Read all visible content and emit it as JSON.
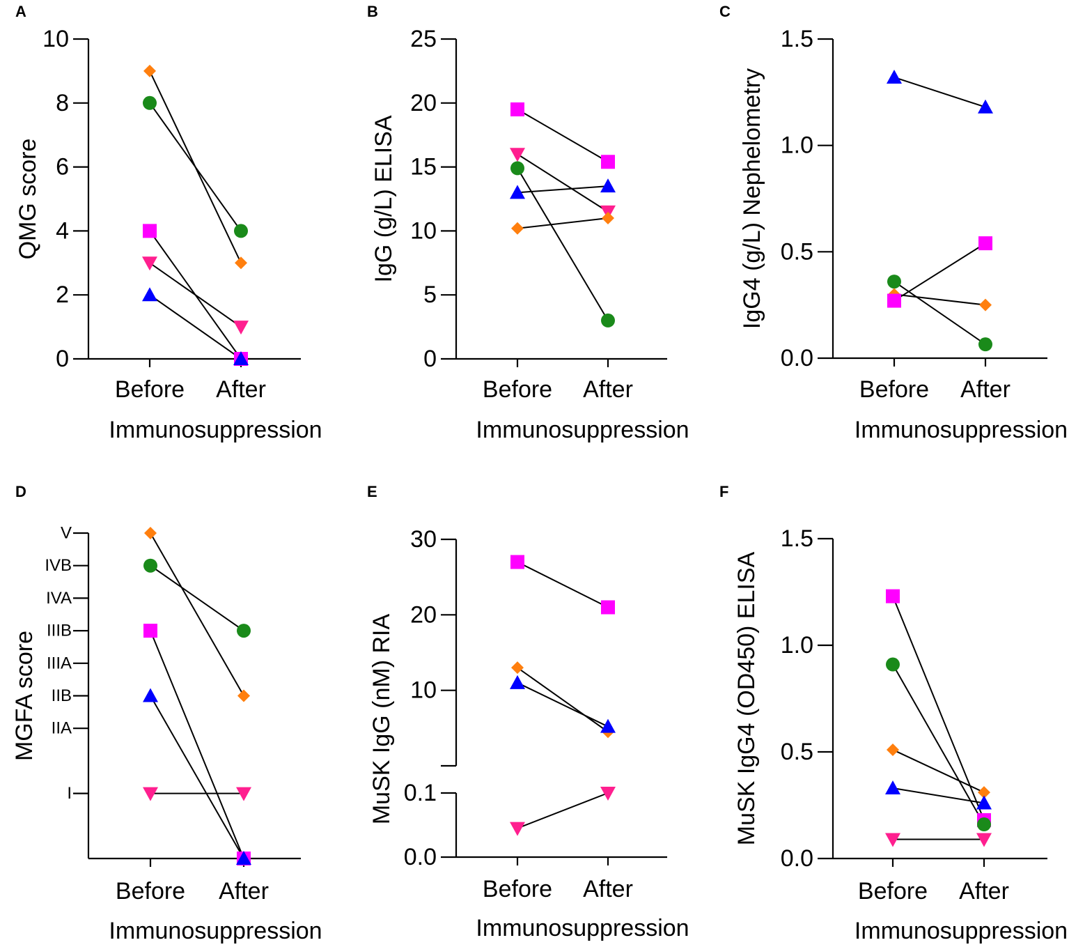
{
  "figure": "Six-panel before/after immunosuppression comparison",
  "colors": {
    "orange": "#ff7f0e",
    "green": "#1a8a1a",
    "magenta": "#ff00ff",
    "pink": "#ff1f8f",
    "blue": "#0000ff"
  },
  "chart_data": [
    {
      "panel": "A",
      "type": "line",
      "categories": [
        "Before",
        "After"
      ],
      "xlabel": "Immunosuppression",
      "ylabel": "QMG score",
      "ylim": [
        0,
        10
      ],
      "yticks": [
        0,
        2,
        4,
        6,
        8,
        10
      ],
      "series": [
        {
          "name": "orange-diamond",
          "color": "orange",
          "marker": "diamond",
          "values": [
            9,
            3
          ]
        },
        {
          "name": "green-circle",
          "color": "green",
          "marker": "circle",
          "values": [
            8,
            4
          ]
        },
        {
          "name": "magenta-square",
          "color": "magenta",
          "marker": "square",
          "values": [
            4,
            0
          ]
        },
        {
          "name": "pink-triangle-down",
          "color": "pink",
          "marker": "tri-down",
          "values": [
            3,
            1
          ]
        },
        {
          "name": "blue-triangle-up",
          "color": "blue",
          "marker": "tri-up",
          "values": [
            2,
            0
          ]
        }
      ]
    },
    {
      "panel": "B",
      "type": "line",
      "categories": [
        "Before",
        "After"
      ],
      "xlabel": "Immunosuppression",
      "ylabel": "IgG (g/L) ELISA",
      "ylim": [
        0,
        25
      ],
      "yticks": [
        0,
        5,
        10,
        15,
        20,
        25
      ],
      "series": [
        {
          "name": "magenta-square",
          "color": "magenta",
          "marker": "square",
          "values": [
            19.5,
            15.4
          ]
        },
        {
          "name": "pink-triangle-down",
          "color": "pink",
          "marker": "tri-down",
          "values": [
            16,
            11.5
          ]
        },
        {
          "name": "green-circle",
          "color": "green",
          "marker": "circle",
          "values": [
            14.9,
            3
          ]
        },
        {
          "name": "blue-triangle-up",
          "color": "blue",
          "marker": "tri-up",
          "values": [
            13,
            13.5
          ]
        },
        {
          "name": "orange-diamond",
          "color": "orange",
          "marker": "diamond",
          "values": [
            10.2,
            11
          ]
        }
      ]
    },
    {
      "panel": "C",
      "type": "line",
      "categories": [
        "Before",
        "After"
      ],
      "xlabel": "Immunosuppression",
      "ylabel": "IgG4 (g/L) Nephelometry",
      "ylim": [
        0,
        1.5
      ],
      "yticks": [
        0,
        0.5,
        1,
        1.5
      ],
      "ytick_labels": [
        "0.0",
        "0.5",
        "1.0",
        "1.5"
      ],
      "series": [
        {
          "name": "blue-triangle-up",
          "color": "blue",
          "marker": "tri-up",
          "values": [
            1.32,
            1.18
          ]
        },
        {
          "name": "green-circle",
          "color": "green",
          "marker": "circle",
          "values": [
            0.36,
            0.065
          ]
        },
        {
          "name": "orange-diamond",
          "color": "orange",
          "marker": "diamond",
          "values": [
            0.3,
            0.25
          ]
        },
        {
          "name": "magenta-square",
          "color": "magenta",
          "marker": "square",
          "values": [
            0.27,
            0.54
          ]
        }
      ]
    },
    {
      "panel": "D",
      "type": "line",
      "categories": [
        "Before",
        "After"
      ],
      "xlabel": "Immunosuppression",
      "ylabel": "MGFA score",
      "ylim": [
        0,
        10
      ],
      "yticks": [
        2,
        4,
        5,
        6,
        7,
        8,
        9,
        10
      ],
      "ytick_labels": [
        "I",
        "IIA",
        "IIB",
        "IIIA",
        "IIIB",
        "IVA",
        "IVB",
        "V"
      ],
      "series": [
        {
          "name": "orange-diamond",
          "color": "orange",
          "marker": "diamond",
          "values": [
            10,
            5
          ]
        },
        {
          "name": "green-circle",
          "color": "green",
          "marker": "circle",
          "values": [
            9,
            7
          ]
        },
        {
          "name": "magenta-square",
          "color": "magenta",
          "marker": "square",
          "values": [
            7,
            0
          ]
        },
        {
          "name": "blue-triangle-up",
          "color": "blue",
          "marker": "tri-up",
          "values": [
            5,
            0
          ]
        },
        {
          "name": "pink-triangle-down",
          "color": "pink",
          "marker": "tri-down",
          "values": [
            2,
            2
          ]
        }
      ]
    },
    {
      "panel": "E",
      "type": "line",
      "categories": [
        "Before",
        "After"
      ],
      "xlabel": "Immunosuppression",
      "ylabel": "MuSK IgG (nM) RIA",
      "axis_break": true,
      "lower_segment": {
        "ylim": [
          0,
          0.1
        ],
        "yticks": [
          0,
          0.1
        ],
        "ytick_labels": [
          "0.0",
          "0.1"
        ]
      },
      "upper_segment": {
        "ylim": [
          0,
          30
        ],
        "yticks": [
          10,
          20,
          30
        ],
        "ytick_labels": [
          "10",
          "20",
          "30"
        ]
      },
      "series": [
        {
          "name": "magenta-square",
          "color": "magenta",
          "marker": "square",
          "segment": "upper",
          "values": [
            27,
            21
          ]
        },
        {
          "name": "orange-diamond",
          "color": "orange",
          "marker": "diamond",
          "segment": "upper",
          "values": [
            13,
            4.5
          ]
        },
        {
          "name": "blue-triangle-up",
          "color": "blue",
          "marker": "tri-up",
          "segment": "upper",
          "values": [
            11,
            5.2
          ]
        },
        {
          "name": "pink-triangle-down",
          "color": "pink",
          "marker": "tri-down",
          "segment": "lower",
          "values": [
            0.045,
            0.1
          ]
        }
      ]
    },
    {
      "panel": "F",
      "type": "line",
      "categories": [
        "Before",
        "After"
      ],
      "xlabel": "Immunosuppression",
      "ylabel": "MuSK IgG4 (OD450) ELISA",
      "ylim": [
        0,
        1.5
      ],
      "yticks": [
        0,
        0.5,
        1,
        1.5
      ],
      "ytick_labels": [
        "0.0",
        "0.5",
        "1.0",
        "1.5"
      ],
      "series": [
        {
          "name": "magenta-square",
          "color": "magenta",
          "marker": "square",
          "values": [
            1.23,
            0.18
          ]
        },
        {
          "name": "green-circle",
          "color": "green",
          "marker": "circle",
          "values": [
            0.91,
            0.16
          ]
        },
        {
          "name": "orange-diamond",
          "color": "orange",
          "marker": "diamond",
          "values": [
            0.51,
            0.31
          ]
        },
        {
          "name": "blue-triangle-up",
          "color": "blue",
          "marker": "tri-up",
          "values": [
            0.33,
            0.26
          ]
        },
        {
          "name": "pink-triangle-down",
          "color": "pink",
          "marker": "tri-down",
          "values": [
            0.09,
            0.09
          ]
        }
      ]
    }
  ]
}
